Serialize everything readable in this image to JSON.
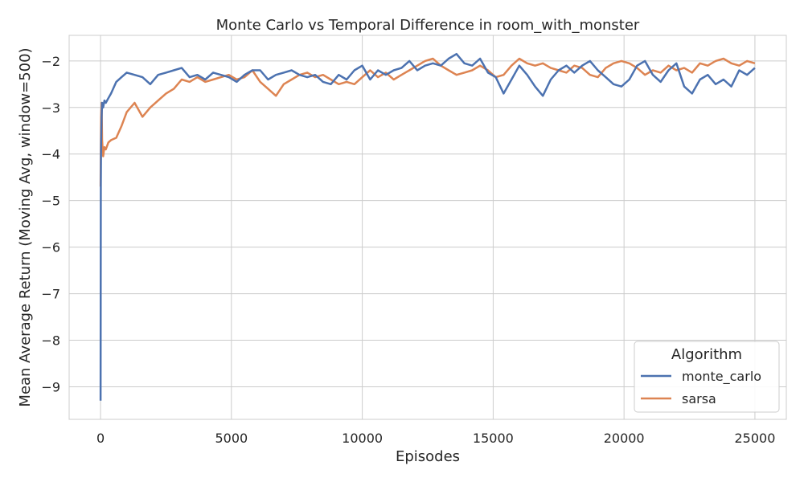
{
  "chart_data": {
    "type": "line",
    "title": "Monte Carlo vs Temporal Difference in room_with_monster",
    "xlabel": "Episodes",
    "ylabel": "Mean Average Return (Moving Avg, window=500)",
    "xlim": [
      -1200,
      26200
    ],
    "ylim": [
      -9.7,
      -1.45
    ],
    "xticks": [
      0,
      5000,
      10000,
      15000,
      20000,
      25000
    ],
    "xtick_labels": [
      "0",
      "5000",
      "10000",
      "15000",
      "20000",
      "25000"
    ],
    "yticks": [
      -9,
      -8,
      -7,
      -6,
      -5,
      -4,
      -3,
      -2
    ],
    "ytick_labels": [
      "−9",
      "−8",
      "−7",
      "−6",
      "−5",
      "−4",
      "−3",
      "−2"
    ],
    "grid": true,
    "legend": {
      "title": "Algorithm",
      "placement": "bottom-right"
    },
    "series": [
      {
        "name": "monte_carlo",
        "color": "#4c72b0",
        "x": [
          0,
          10,
          20,
          40,
          60,
          100,
          150,
          200,
          300,
          400,
          600,
          800,
          1000,
          1300,
          1600,
          1900,
          2200,
          2500,
          2800,
          3100,
          3400,
          3700,
          4000,
          4300,
          4600,
          4900,
          5200,
          5500,
          5800,
          6100,
          6400,
          6700,
          7000,
          7300,
          7600,
          7900,
          8200,
          8500,
          8800,
          9100,
          9400,
          9700,
          10000,
          10300,
          10600,
          10900,
          11200,
          11500,
          11800,
          12100,
          12400,
          12700,
          13000,
          13300,
          13600,
          13900,
          14200,
          14500,
          14800,
          15100,
          15400,
          15700,
          16000,
          16300,
          16600,
          16900,
          17200,
          17500,
          17800,
          18100,
          18400,
          18700,
          19000,
          19300,
          19600,
          19900,
          20200,
          20500,
          20800,
          21100,
          21400,
          21700,
          22000,
          22300,
          22600,
          22900,
          23200,
          23500,
          23800,
          24100,
          24400,
          24700,
          25000
        ],
        "y": [
          -9.3,
          -4.7,
          -3.8,
          -3.2,
          -2.9,
          -3.0,
          -2.85,
          -2.9,
          -2.8,
          -2.7,
          -2.45,
          -2.35,
          -2.25,
          -2.3,
          -2.35,
          -2.5,
          -2.3,
          -2.25,
          -2.2,
          -2.15,
          -2.35,
          -2.3,
          -2.4,
          -2.25,
          -2.3,
          -2.35,
          -2.45,
          -2.3,
          -2.2,
          -2.2,
          -2.4,
          -2.3,
          -2.25,
          -2.2,
          -2.3,
          -2.35,
          -2.3,
          -2.45,
          -2.5,
          -2.3,
          -2.4,
          -2.2,
          -2.1,
          -2.4,
          -2.2,
          -2.3,
          -2.2,
          -2.15,
          -2.0,
          -2.2,
          -2.1,
          -2.05,
          -2.1,
          -1.95,
          -1.85,
          -2.05,
          -2.1,
          -1.95,
          -2.25,
          -2.35,
          -2.7,
          -2.4,
          -2.1,
          -2.3,
          -2.55,
          -2.75,
          -2.4,
          -2.2,
          -2.1,
          -2.25,
          -2.1,
          -2.0,
          -2.2,
          -2.35,
          -2.5,
          -2.55,
          -2.4,
          -2.1,
          -2.0,
          -2.3,
          -2.45,
          -2.2,
          -2.05,
          -2.55,
          -2.7,
          -2.4,
          -2.3,
          -2.5,
          -2.4,
          -2.55,
          -2.2,
          -2.3,
          -2.15
        ]
      },
      {
        "name": "sarsa",
        "color": "#dd8452",
        "x": [
          0,
          10,
          20,
          40,
          60,
          100,
          150,
          200,
          300,
          400,
          600,
          800,
          1000,
          1300,
          1600,
          1900,
          2200,
          2500,
          2800,
          3100,
          3400,
          3700,
          4000,
          4300,
          4600,
          4900,
          5200,
          5500,
          5800,
          6100,
          6400,
          6700,
          7000,
          7300,
          7600,
          7900,
          8200,
          8500,
          8800,
          9100,
          9400,
          9700,
          10000,
          10300,
          10600,
          10900,
          11200,
          11500,
          11800,
          12100,
          12400,
          12700,
          13000,
          13300,
          13600,
          13900,
          14200,
          14500,
          14800,
          15100,
          15400,
          15700,
          16000,
          16300,
          16600,
          16900,
          17200,
          17500,
          17800,
          18100,
          18400,
          18700,
          19000,
          19300,
          19600,
          19900,
          20200,
          20500,
          20800,
          21100,
          21400,
          21700,
          22000,
          22300,
          22600,
          22900,
          23200,
          23500,
          23800,
          24100,
          24400,
          24700,
          25000
        ],
        "y": [
          -4.7,
          -3.8,
          -3.2,
          -2.9,
          -3.7,
          -4.05,
          -3.85,
          -3.9,
          -3.75,
          -3.7,
          -3.65,
          -3.4,
          -3.1,
          -2.9,
          -3.2,
          -3.0,
          -2.85,
          -2.7,
          -2.6,
          -2.4,
          -2.45,
          -2.35,
          -2.45,
          -2.4,
          -2.35,
          -2.3,
          -2.4,
          -2.35,
          -2.2,
          -2.45,
          -2.6,
          -2.75,
          -2.5,
          -2.4,
          -2.3,
          -2.25,
          -2.35,
          -2.3,
          -2.4,
          -2.5,
          -2.45,
          -2.5,
          -2.35,
          -2.2,
          -2.35,
          -2.25,
          -2.4,
          -2.3,
          -2.2,
          -2.1,
          -2.0,
          -1.95,
          -2.1,
          -2.2,
          -2.3,
          -2.25,
          -2.2,
          -2.1,
          -2.2,
          -2.35,
          -2.3,
          -2.1,
          -1.95,
          -2.05,
          -2.1,
          -2.05,
          -2.15,
          -2.2,
          -2.25,
          -2.1,
          -2.15,
          -2.3,
          -2.35,
          -2.15,
          -2.05,
          -2.0,
          -2.05,
          -2.15,
          -2.3,
          -2.2,
          -2.25,
          -2.1,
          -2.2,
          -2.15,
          -2.25,
          -2.05,
          -2.1,
          -2.0,
          -1.95,
          -2.05,
          -2.1,
          -2.0,
          -2.05
        ]
      }
    ]
  }
}
